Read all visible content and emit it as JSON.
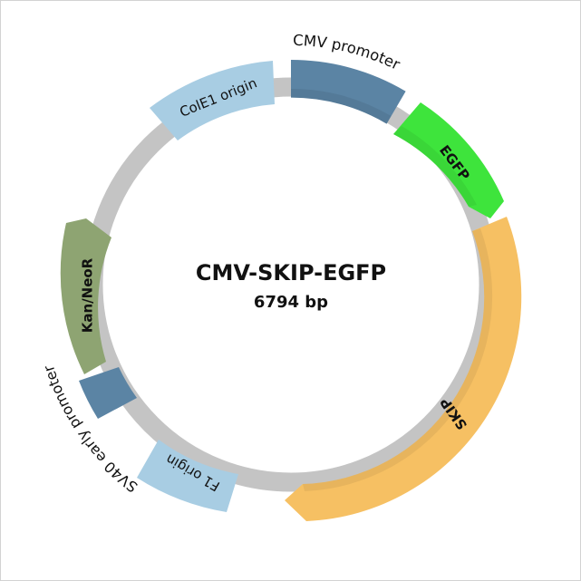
{
  "plasmid": {
    "name": "CMV-SKIP-EGFP",
    "size_label": "6794 bp",
    "backbone_color": "#c4c4c4"
  },
  "features": [
    {
      "id": "cmv-promoter",
      "label": "CMV promoter",
      "color": "#5b84a4",
      "arrow": false,
      "label_side": "outer"
    },
    {
      "id": "egfp",
      "label": "EGFP",
      "color": "#3ee43c",
      "arrow": true,
      "label_side": "inside"
    },
    {
      "id": "skip",
      "label": "SKIP",
      "color": "#f6c063",
      "arrow": true,
      "label_side": "inside"
    },
    {
      "id": "f1-origin",
      "label": "F1 origin",
      "color": "#a8cde3",
      "arrow": false,
      "label_side": "inside"
    },
    {
      "id": "sv40-early-promoter",
      "label": "SV40 early promoter",
      "color": "#5b84a4",
      "arrow": false,
      "label_side": "outer"
    },
    {
      "id": "kan-neor",
      "label": "Kan/NeoR",
      "color": "#8ea472",
      "arrow": true,
      "label_side": "inside"
    },
    {
      "id": "cole1-origin",
      "label": "ColE1 origin",
      "color": "#a8cde3",
      "arrow": false,
      "label_side": "inside"
    }
  ]
}
